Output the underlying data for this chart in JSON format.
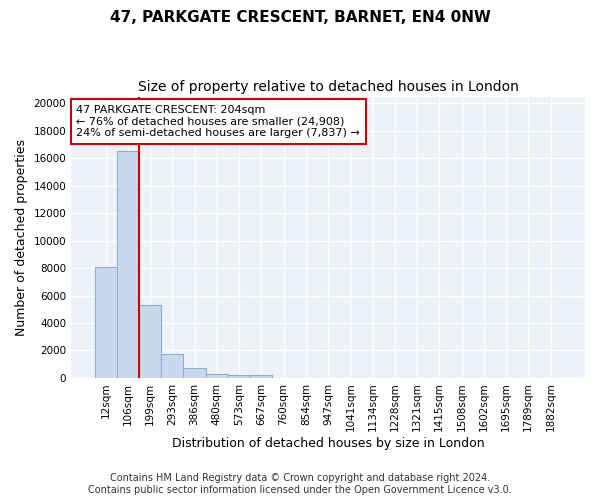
{
  "title": "47, PARKGATE CRESCENT, BARNET, EN4 0NW",
  "subtitle": "Size of property relative to detached houses in London",
  "xlabel": "Distribution of detached houses by size in London",
  "ylabel": "Number of detached properties",
  "categories": [
    "12sqm",
    "106sqm",
    "199sqm",
    "293sqm",
    "386sqm",
    "480sqm",
    "573sqm",
    "667sqm",
    "760sqm",
    "854sqm",
    "947sqm",
    "1041sqm",
    "1134sqm",
    "1228sqm",
    "1321sqm",
    "1415sqm",
    "1508sqm",
    "1602sqm",
    "1695sqm",
    "1789sqm",
    "1882sqm"
  ],
  "values": [
    8100,
    16500,
    5300,
    1750,
    750,
    300,
    200,
    200,
    0,
    0,
    0,
    0,
    0,
    0,
    0,
    0,
    0,
    0,
    0,
    0,
    0
  ],
  "bar_color": "#c8d8ee",
  "bar_edge_color": "#8ab0d8",
  "red_line_x": 1.5,
  "red_line_color": "#cc0000",
  "annotation_text": "47 PARKGATE CRESCENT: 204sqm\n← 76% of detached houses are smaller (24,908)\n24% of semi-detached houses are larger (7,837) →",
  "annotation_box_color": "#ffffff",
  "annotation_box_edge": "#cc0000",
  "ylim": [
    0,
    20500
  ],
  "yticks": [
    0,
    2000,
    4000,
    6000,
    8000,
    10000,
    12000,
    14000,
    16000,
    18000,
    20000
  ],
  "footer_line1": "Contains HM Land Registry data © Crown copyright and database right 2024.",
  "footer_line2": "Contains public sector information licensed under the Open Government Licence v3.0.",
  "bg_color": "#ffffff",
  "plot_bg_color": "#eef2f8",
  "grid_color": "#ffffff",
  "title_fontsize": 11,
  "subtitle_fontsize": 10,
  "tick_fontsize": 7.5,
  "ylabel_fontsize": 9,
  "xlabel_fontsize": 9,
  "footer_fontsize": 7
}
